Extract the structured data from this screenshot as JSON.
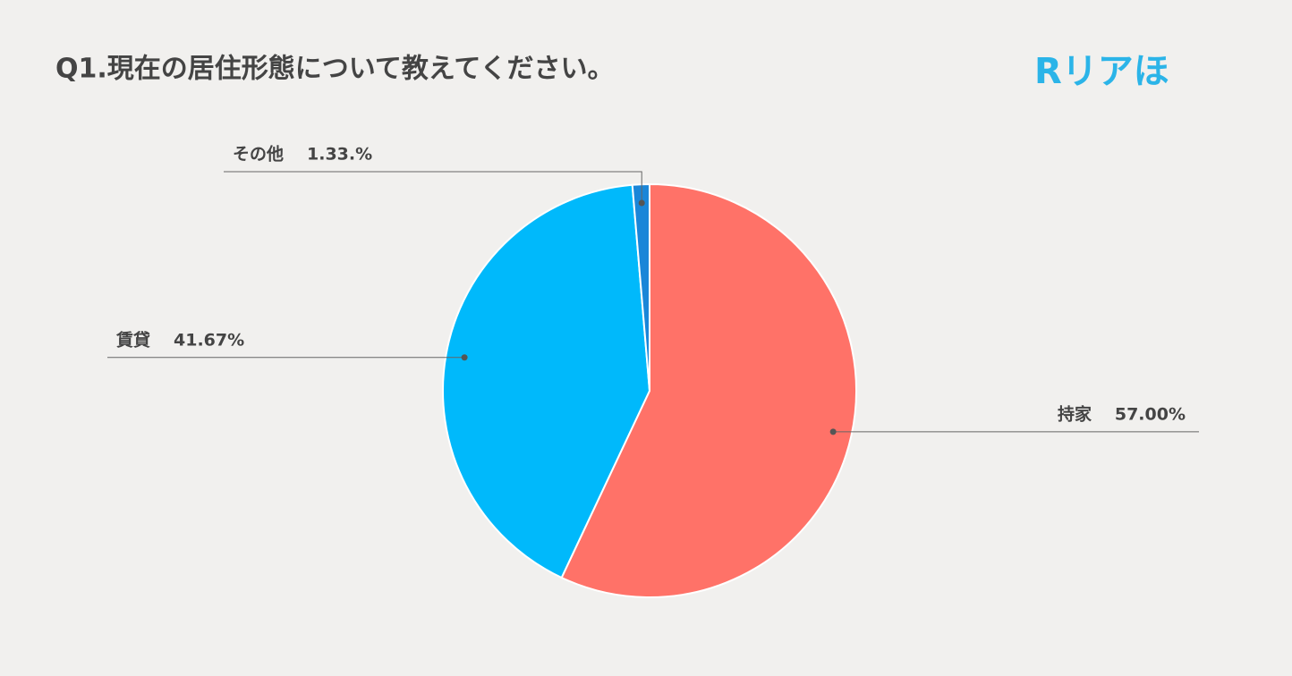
{
  "chart_data": {
    "type": "pie",
    "title": "Q1.現在の居住形態について教えてください。",
    "logo": "Rリアほ",
    "categories": [
      "持家",
      "賃貸",
      "その他"
    ],
    "values": [
      57.0,
      41.67,
      1.33
    ],
    "value_labels": [
      "57.00%",
      "41.67%",
      "1.33.%"
    ],
    "colors": [
      "#ff7268",
      "#00b9fb",
      "#1a86d8"
    ]
  }
}
